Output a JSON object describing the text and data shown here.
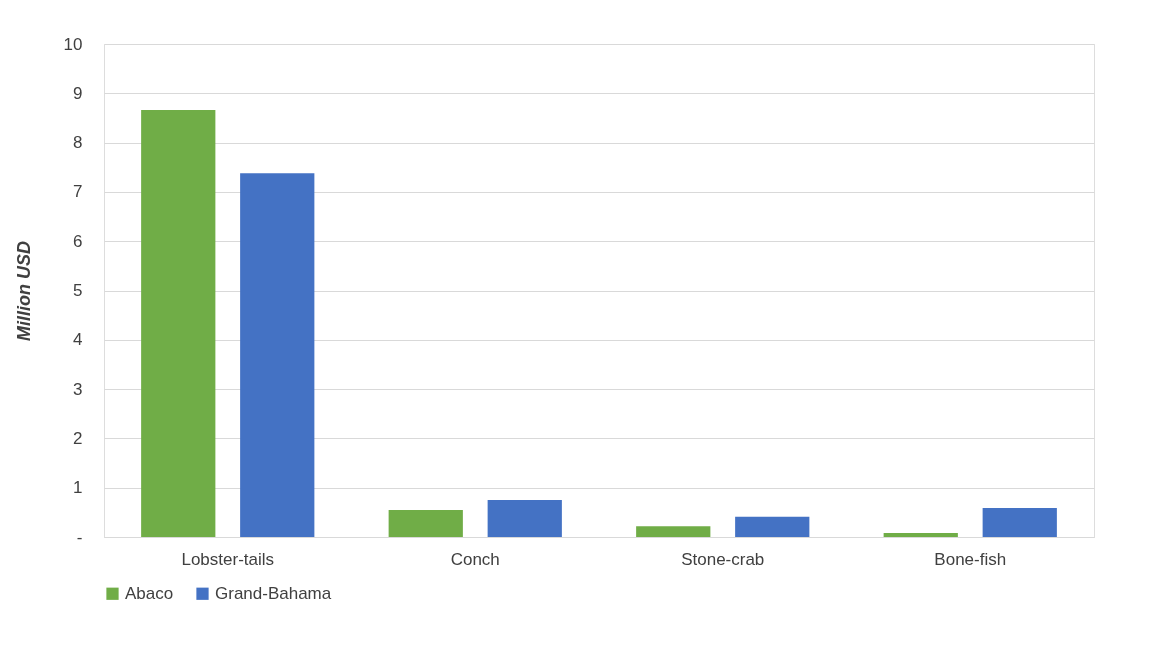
{
  "chart_data": {
    "type": "bar",
    "ylabel": "Million  USD",
    "categories": [
      "Lobster-tails",
      "Conch",
      "Stone-crab",
      "Bone-fish"
    ],
    "series": [
      {
        "name": "Abaco",
        "color": "#70ad47",
        "values": [
          8.66,
          0.55,
          0.22,
          0.08
        ]
      },
      {
        "name": "Grand-Bahama",
        "color": "#4472c4",
        "values": [
          7.38,
          0.75,
          0.41,
          0.59
        ]
      }
    ],
    "ylim": [
      0,
      10
    ],
    "yticks": [
      {
        "value": 0,
        "label": "-"
      },
      1,
      2,
      3,
      4,
      5,
      6,
      7,
      8,
      9,
      10
    ],
    "grid": "y",
    "legend": "bottom"
  }
}
